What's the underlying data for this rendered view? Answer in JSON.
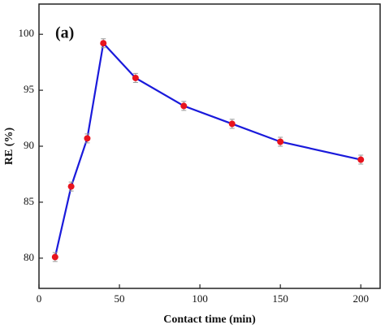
{
  "chart_data": {
    "type": "line",
    "annotation": "(a)",
    "x_label": "Contact time (min)",
    "y_label": "RE (%)",
    "x": [
      10,
      20,
      30,
      40,
      60,
      90,
      120,
      150,
      200
    ],
    "series": [
      {
        "color": "#1a1adb",
        "marker_color": "#e8141e",
        "values": [
          80.1,
          86.4,
          90.7,
          99.2,
          96.1,
          93.6,
          92.0,
          90.4,
          88.8
        ],
        "errors": [
          0.4,
          0.4,
          0.4,
          0.4,
          0.4,
          0.4,
          0.4,
          0.4,
          0.4
        ]
      }
    ],
    "xlim": [
      0,
      212
    ],
    "xticks": [
      0,
      50,
      100,
      150,
      200
    ],
    "ylim": [
      77.3,
      102.7
    ],
    "yticks": [
      80,
      85,
      90,
      95,
      100
    ]
  }
}
